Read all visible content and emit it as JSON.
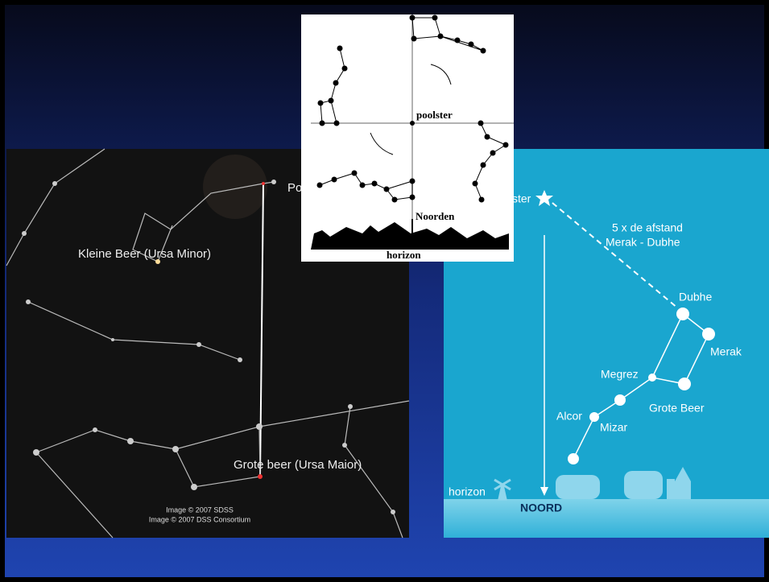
{
  "left_image": {
    "polaris_label": "Po",
    "ursa_minor_label": "Kleine Beer (Ursa Minor)",
    "ursa_major_label": "Grote beer (Ursa Maior)",
    "credit_1": "Image © 2007 SDSS",
    "credit_2": "Image © 2007 DSS Consortium"
  },
  "center_diagram": {
    "pole_label": "poolster",
    "north_label": "Noorden",
    "horizon_label": "horizon"
  },
  "right_image": {
    "polaris_label": "ster",
    "distance_line_1": "5 x de afstand",
    "distance_line_2": "Merak - Dubhe",
    "dubhe": "Dubhe",
    "merak": "Merak",
    "megrez": "Megrez",
    "constellation": "Grote Beer",
    "alcor": "Alcor",
    "mizar": "Mizar",
    "horizon": "horizon",
    "north": "NOORD"
  }
}
